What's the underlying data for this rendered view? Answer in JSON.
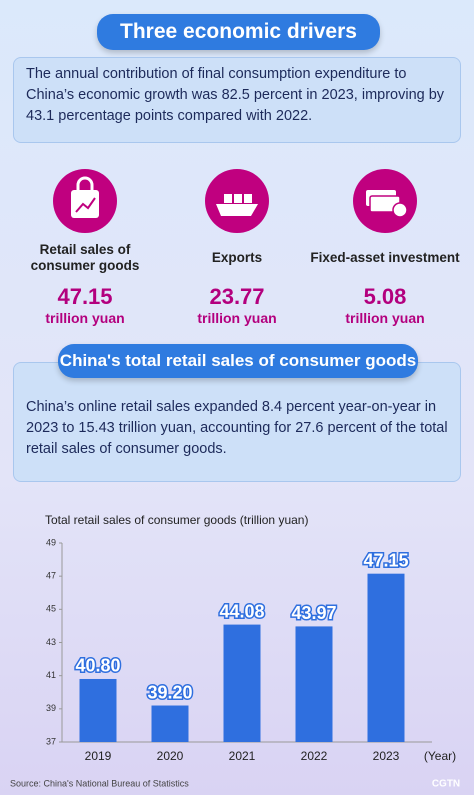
{
  "header": {
    "title": "Three economic drivers",
    "text": "The annual contribution of final consumption expenditure to China’s economic growth was 82.5 percent in 2023, improving by 43.1 percentage points compared with 2022."
  },
  "stats": [
    {
      "label": "Retail sales of consumer goods",
      "value": "47.15",
      "unit": "trillion yuan"
    },
    {
      "label": "Exports",
      "value": "23.77",
      "unit": "trillion yuan"
    },
    {
      "label": "Fixed-asset investment",
      "value": "5.08",
      "unit": "trillion yuan"
    }
  ],
  "section": {
    "title": "China's total retail sales of consumer goods",
    "text": "China’s online retail sales expanded 8.4 percent year-on-year in 2023 to 15.43 trillion yuan, accounting for 27.6 percent of the total retail sales of consumer goods."
  },
  "chart_data": {
    "type": "bar",
    "title": "Total retail sales of consumer goods (trillion yuan)",
    "x_label": "(Year)",
    "categories": [
      "2019",
      "2020",
      "2021",
      "2022",
      "2023"
    ],
    "values": [
      40.8,
      39.2,
      44.08,
      43.97,
      47.15
    ],
    "value_labels": [
      "40.80",
      "39.20",
      "44.08",
      "43.97",
      "47.15"
    ],
    "color": "#2f6fdf",
    "ylim": [
      37,
      49
    ],
    "yticks": [
      37,
      39,
      41,
      43,
      45,
      47,
      49
    ],
    "grid": false
  },
  "footer": {
    "source": "Source: China's National Bureau of Statistics",
    "logo": "CGTN"
  }
}
